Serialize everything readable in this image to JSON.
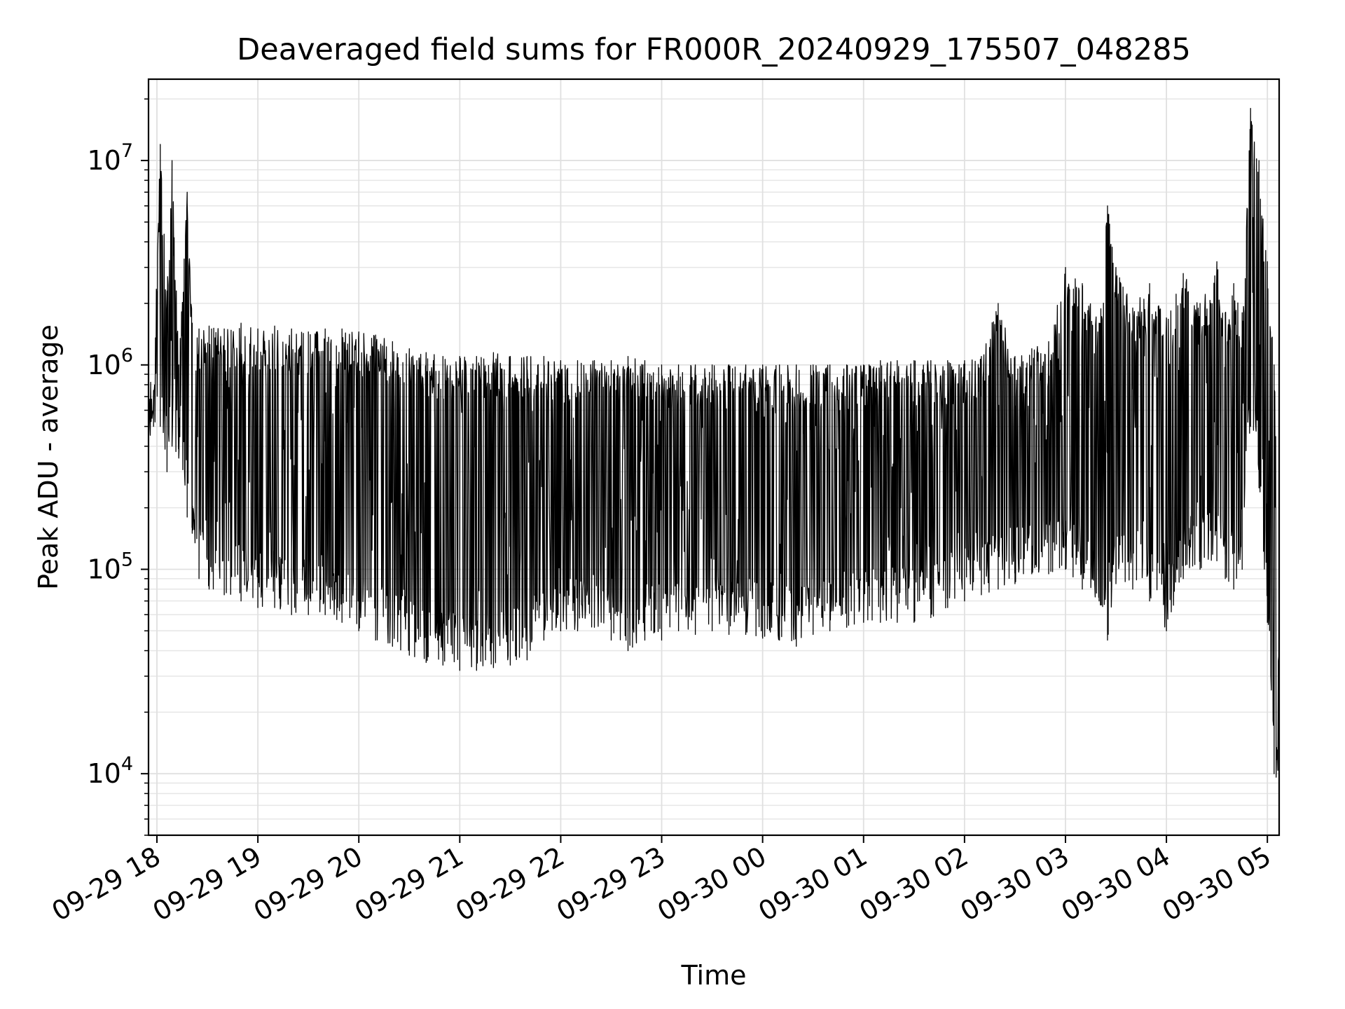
{
  "chart_data": {
    "type": "line",
    "title": "Deaveraged field sums for FR000R_20240929_175507_048285",
    "xlabel": "Time",
    "ylabel": "Peak ADU - average",
    "y_scale": "log",
    "ylim": [
      5000,
      25000000
    ],
    "xlim": [
      "09-29 17:55",
      "09-30 05:07"
    ],
    "grid": true,
    "x_ticks": [
      "09-29 18",
      "09-29 19",
      "09-29 20",
      "09-29 21",
      "09-29 22",
      "09-29 23",
      "09-30 00",
      "09-30 01",
      "09-30 02",
      "09-30 03",
      "09-30 04",
      "09-30 05"
    ],
    "y_ticks": [
      {
        "base": "10",
        "exp": "4"
      },
      {
        "base": "10",
        "exp": "5"
      },
      {
        "base": "10",
        "exp": "6"
      },
      {
        "base": "10",
        "exp": "7"
      }
    ],
    "line_color": "#000000",
    "series": [
      {
        "x": [
          "09-29 17:55",
          "09-29 17:58",
          "09-29 18:02",
          "09-29 18:06",
          "09-29 18:09",
          "09-29 18:13",
          "09-29 18:18",
          "09-29 18:21",
          "09-29 18:25",
          "09-29 18:31",
          "09-29 18:40",
          "09-29 18:50",
          "09-29 19:00",
          "09-29 19:10",
          "09-29 19:20",
          "09-29 19:30",
          "09-29 19:40",
          "09-29 19:50",
          "09-29 20:00",
          "09-29 20:10",
          "09-29 20:20",
          "09-29 20:30",
          "09-29 20:40",
          "09-29 20:50",
          "09-29 21:00",
          "09-29 21:10",
          "09-29 21:20",
          "09-29 21:30",
          "09-29 21:40",
          "09-29 21:50",
          "09-29 22:00",
          "09-29 22:10",
          "09-29 22:20",
          "09-29 22:30",
          "09-29 22:40",
          "09-29 22:50",
          "09-29 23:00",
          "09-29 23:10",
          "09-29 23:20",
          "09-29 23:30",
          "09-29 23:40",
          "09-29 23:50",
          "09-30 00:00",
          "09-30 00:10",
          "09-30 00:20",
          "09-30 00:30",
          "09-30 00:40",
          "09-30 00:50",
          "09-30 01:00",
          "09-30 01:10",
          "09-30 01:20",
          "09-30 01:30",
          "09-30 01:40",
          "09-30 01:50",
          "09-30 02:00",
          "09-30 02:10",
          "09-30 02:20",
          "09-30 02:30",
          "09-30 02:40",
          "09-30 02:50",
          "09-30 03:00",
          "09-30 03:10",
          "09-30 03:20",
          "09-30 03:25",
          "09-30 03:30",
          "09-30 03:40",
          "09-30 03:50",
          "09-30 04:00",
          "09-30 04:10",
          "09-30 04:20",
          "09-30 04:30",
          "09-30 04:35",
          "09-30 04:40",
          "09-30 04:45",
          "09-30 04:50",
          "09-30 04:55",
          "09-30 05:00",
          "09-30 05:04",
          "09-30 05:07"
        ],
        "y_high": [
          700000,
          750000,
          12000000,
          2300000,
          10000000,
          1000000,
          7000000,
          1600000,
          1500000,
          1550000,
          1500000,
          1600000,
          1500000,
          1550000,
          1500000,
          1450000,
          1500000,
          1500000,
          1450000,
          1400000,
          1300000,
          1200000,
          1150000,
          1100000,
          1100000,
          1100000,
          1150000,
          1100000,
          1100000,
          1100000,
          1050000,
          1050000,
          1050000,
          1050000,
          1100000,
          1050000,
          1000000,
          1000000,
          1000000,
          1000000,
          1000000,
          1000000,
          1000000,
          1000000,
          1000000,
          1000000,
          1000000,
          1000000,
          1000000,
          1050000,
          1050000,
          1050000,
          1050000,
          1050000,
          1050000,
          1100000,
          2000000,
          1100000,
          1200000,
          1300000,
          3000000,
          2500000,
          1600000,
          6000000,
          3000000,
          1900000,
          2500000,
          1700000,
          2800000,
          2000000,
          3200000,
          1800000,
          2500000,
          1800000,
          18000000,
          10000000,
          3200000,
          1000000,
          250000
        ],
        "y_low": [
          420000,
          500000,
          500000,
          300000,
          400000,
          350000,
          180000,
          150000,
          90000,
          80000,
          75000,
          70000,
          65000,
          65000,
          60000,
          60000,
          60000,
          55000,
          50000,
          45000,
          42000,
          38000,
          35000,
          34000,
          32000,
          32000,
          33000,
          34000,
          36000,
          45000,
          50000,
          50000,
          52000,
          45000,
          40000,
          45000,
          45000,
          50000,
          48000,
          50000,
          48000,
          48000,
          46000,
          45000,
          42000,
          48000,
          50000,
          52000,
          55000,
          55000,
          55000,
          55000,
          58000,
          65000,
          70000,
          75000,
          80000,
          85000,
          95000,
          95000,
          100000,
          80000,
          70000,
          45000,
          85000,
          80000,
          70000,
          50000,
          90000,
          100000,
          110000,
          90000,
          80000,
          100000,
          500000,
          250000,
          55000,
          10000,
          7000
        ]
      }
    ]
  }
}
